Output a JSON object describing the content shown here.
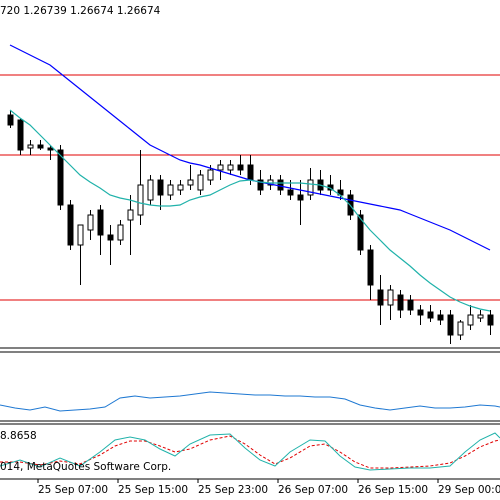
{
  "header": "720 1.26739 1.26674 1.26674",
  "indicator_label": "8.8658",
  "watermark": "014, MetaQuotes Software Corp.",
  "chart_data": {
    "type": "candlestick",
    "ylim": [
      1.2662,
      1.28
    ],
    "categories": [
      null,
      null,
      null,
      "25 Sep 07:00",
      null,
      null,
      null,
      null,
      null,
      null,
      null,
      "25 Sep 15:00",
      null,
      null,
      null,
      null,
      null,
      null,
      null,
      "25 Sep 23:00",
      null,
      null,
      null,
      null,
      null,
      null,
      null,
      "26 Sep 07:00",
      null,
      null,
      null,
      null,
      null,
      null,
      null,
      "26 Sep 15:00",
      null,
      null,
      null,
      null,
      null,
      null,
      null,
      "29 Sep 00:00",
      null,
      null,
      null,
      null,
      null
    ],
    "open": [
      1.2754,
      1.2752,
      1.27408,
      1.2742,
      1.27408,
      1.274,
      1.2718,
      1.2702,
      1.2708,
      1.2716,
      1.2706,
      1.2704,
      1.2712,
      1.2714,
      1.272,
      1.2728,
      1.2722,
      1.2724,
      1.2726,
      1.2724,
      1.2728,
      1.2732,
      1.2732,
      1.2734,
      1.2734,
      1.2728,
      1.2726,
      1.2728,
      1.2724,
      1.2722,
      1.2722,
      1.2728,
      1.2726,
      1.2724,
      1.2722,
      1.2714,
      1.27,
      1.2684,
      1.2678,
      1.2682,
      1.268,
      1.2676,
      1.26752,
      1.2674,
      1.2674,
      1.2666,
      1.267,
      1.26728,
      1.2674
    ],
    "high": [
      1.2756,
      1.27528,
      1.2744,
      1.2744,
      1.2742,
      1.2742,
      1.272,
      1.271,
      1.2716,
      1.2718,
      1.271,
      1.2712,
      1.2722,
      1.274,
      1.273,
      1.273,
      1.2728,
      1.2728,
      1.2734,
      1.2732,
      1.2734,
      1.2736,
      1.2736,
      1.2738,
      1.2738,
      1.2732,
      1.273,
      1.273,
      1.2728,
      1.2728,
      1.27328,
      1.2732,
      1.273,
      1.2728,
      1.2724,
      1.2716,
      1.2702,
      1.269,
      1.2686,
      1.2684,
      1.2682,
      1.2678,
      1.2678,
      1.2676,
      1.2676,
      1.2672,
      1.2678,
      1.2676,
      1.2676
    ],
    "low": [
      1.27488,
      1.2738,
      1.2738,
      1.274,
      1.2736,
      1.2716,
      1.27,
      1.2686,
      1.2704,
      1.2698,
      1.2694,
      1.2702,
      1.2698,
      1.271,
      1.2718,
      1.2716,
      1.272,
      1.2722,
      1.2724,
      1.2722,
      1.2726,
      1.2728,
      1.273,
      1.273,
      1.2726,
      1.2722,
      1.2724,
      1.2722,
      1.272,
      1.271,
      1.272,
      1.2722,
      1.2722,
      1.272,
      1.2712,
      1.2698,
      1.268,
      1.267,
      1.2672,
      1.26728,
      1.2674,
      1.267,
      1.26712,
      1.267,
      1.26624,
      1.2664,
      1.2668,
      1.26712,
      1.2666
    ],
    "close": [
      1.275,
      1.274,
      1.2742,
      1.27408,
      1.274,
      1.2718,
      1.2702,
      1.271,
      1.2714,
      1.2706,
      1.2704,
      1.271,
      1.2716,
      1.2726,
      1.2728,
      1.2722,
      1.2726,
      1.2726,
      1.2728,
      1.273,
      1.2732,
      1.2734,
      1.2734,
      1.2732,
      1.2728,
      1.2724,
      1.2728,
      1.2724,
      1.2722,
      1.272,
      1.2728,
      1.2724,
      1.2724,
      1.2722,
      1.2714,
      1.27,
      1.2686,
      1.2678,
      1.2684,
      1.2676,
      1.2676,
      1.2674,
      1.26728,
      1.2672,
      1.2666,
      1.26712,
      1.2674,
      1.2674,
      1.267
    ],
    "series": [
      {
        "color": "#0000ff",
        "values": [
          1.2782,
          1.278,
          1.2778,
          1.2776,
          1.2774,
          1.27708,
          1.27676,
          1.27644,
          1.27612,
          1.2758,
          1.27548,
          1.27516,
          1.27484,
          1.27452,
          1.2742,
          1.274,
          1.2738,
          1.2736,
          1.27348,
          1.2734,
          1.27328,
          1.27316,
          1.27304,
          1.27292,
          1.2728,
          1.27272,
          1.27264,
          1.27256,
          1.27248,
          1.2724,
          1.27232,
          1.27224,
          1.27216,
          1.27208,
          1.272,
          1.27192,
          1.27184,
          1.27176,
          1.27168,
          1.2716,
          1.27144,
          1.27128,
          1.27112,
          1.27096,
          1.2708,
          1.2706,
          1.2704,
          1.2702,
          1.27
        ]
      },
      {
        "color": "#20b2aa",
        "values": [
          1.2756,
          1.27528,
          1.275,
          1.2746,
          1.2742,
          1.2738,
          1.2734,
          1.273,
          1.27272,
          1.27248,
          1.2722,
          1.27208,
          1.272,
          1.27188,
          1.2718,
          1.27176,
          1.27176,
          1.2718,
          1.272,
          1.27212,
          1.2722,
          1.2724,
          1.2726,
          1.27276,
          1.2728,
          1.27272,
          1.27268,
          1.27268,
          1.27268,
          1.27268,
          1.27264,
          1.2726,
          1.27248,
          1.2722,
          1.2718,
          1.27128,
          1.2708,
          1.2704,
          1.27,
          1.26968,
          1.26936,
          1.269,
          1.26868,
          1.2684,
          1.26812,
          1.26792,
          1.26776,
          1.26764,
          1.26756
        ]
      }
    ],
    "levels": [
      1.277,
      1.2738,
      1.268
    ],
    "level_color": "#e00000",
    "bull_color": "#ffffff",
    "bear_color": "#000000"
  }
}
